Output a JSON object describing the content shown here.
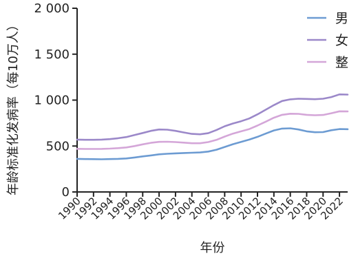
{
  "chart_data": {
    "type": "line",
    "xlabel": "年份",
    "ylabel": "年龄标准化发病率（每10万人）",
    "xlim": [
      1990,
      2023
    ],
    "ylim": [
      0,
      2000
    ],
    "yticks": [
      0,
      500,
      1000,
      1500,
      2000
    ],
    "ytick_labels": [
      "0",
      "500",
      "1 000",
      "1 500",
      "2 000"
    ],
    "xticks": [
      1990,
      1992,
      1994,
      1996,
      1998,
      2000,
      2002,
      2004,
      2006,
      2008,
      2010,
      2012,
      2014,
      2016,
      2018,
      2020,
      2022
    ],
    "xtick_labels": [
      "1990",
      "1992",
      "1994",
      "1996",
      "1998",
      "2000",
      "2002",
      "2004",
      "2006",
      "2008",
      "2010",
      "2012",
      "2014",
      "2016",
      "2018",
      "2020",
      "2022"
    ],
    "grid": false,
    "legend_position": "top-right",
    "x": [
      1990,
      1991,
      1992,
      1993,
      1994,
      1995,
      1996,
      1997,
      1998,
      1999,
      2000,
      2001,
      2002,
      2003,
      2004,
      2005,
      2006,
      2007,
      2008,
      2009,
      2010,
      2011,
      2012,
      2013,
      2014,
      2015,
      2016,
      2017,
      2018,
      2019,
      2020,
      2021,
      2022,
      2023
    ],
    "series": [
      {
        "name": "男",
        "color": "#6c9bd2",
        "values": [
          360,
          358,
          357,
          356,
          358,
          360,
          365,
          375,
          387,
          398,
          410,
          416,
          420,
          424,
          427,
          430,
          440,
          460,
          490,
          520,
          545,
          570,
          600,
          635,
          670,
          690,
          693,
          680,
          660,
          650,
          652,
          672,
          685,
          683
        ]
      },
      {
        "name": "女",
        "color": "#9b88c9",
        "values": [
          570,
          568,
          568,
          570,
          575,
          585,
          598,
          620,
          642,
          665,
          680,
          678,
          665,
          648,
          632,
          628,
          640,
          675,
          715,
          745,
          770,
          800,
          845,
          895,
          945,
          990,
          1008,
          1015,
          1013,
          1010,
          1015,
          1033,
          1062,
          1060
        ]
      },
      {
        "name": "整",
        "color": "#d4a6d8",
        "values": [
          470,
          468,
          468,
          469,
          472,
          477,
          485,
          500,
          518,
          535,
          545,
          547,
          543,
          537,
          530,
          530,
          543,
          567,
          603,
          635,
          660,
          685,
          723,
          765,
          808,
          840,
          852,
          850,
          840,
          835,
          838,
          857,
          878,
          877
        ]
      }
    ]
  }
}
